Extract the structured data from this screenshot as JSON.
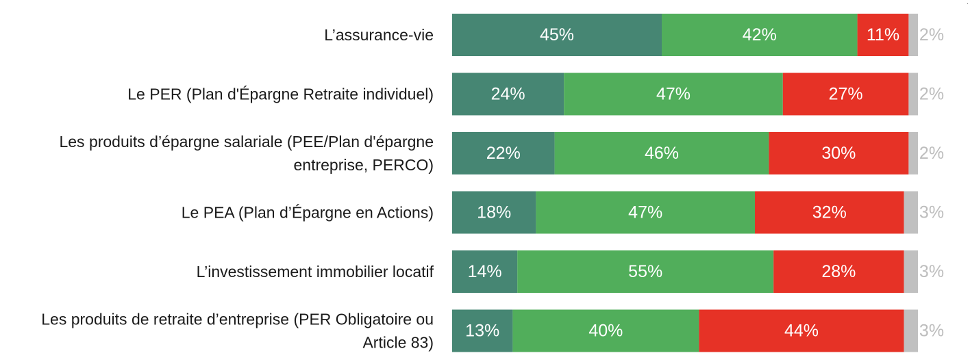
{
  "chart_data": {
    "type": "bar",
    "orientation": "horizontal",
    "stacked": true,
    "title": "",
    "xlabel": "",
    "ylabel": "",
    "legend": "none",
    "grid": false,
    "xlim": [
      0,
      100
    ],
    "categories": [
      [
        "L’assurance-vie"
      ],
      [
        "Le PER (Plan d'Épargne Retraite individuel)"
      ],
      [
        "Les produits d’épargne salariale (PEE/Plan d'épargne",
        "entreprise, PERCO)"
      ],
      [
        "Le PEA (Plan d’Épargne en Actions)"
      ],
      [
        "L’investissement immobilier locatif"
      ],
      [
        "Les produits de retraite d’entreprise (PER Obligatoire ou",
        "Article 83)"
      ]
    ],
    "series": [
      {
        "color": "#468673",
        "label_color": "#ffffff",
        "values": [
          45,
          24,
          22,
          18,
          14,
          13
        ]
      },
      {
        "color": "#51ae5b",
        "label_color": "#ffffff",
        "values": [
          42,
          47,
          46,
          47,
          55,
          40
        ]
      },
      {
        "color": "#e63226",
        "label_color": "#ffffff",
        "values": [
          11,
          27,
          30,
          32,
          28,
          44
        ]
      },
      {
        "color": "#c0c0c0",
        "label_color": "#bdbdbd",
        "values": [
          2,
          2,
          2,
          3,
          3,
          3
        ]
      }
    ],
    "data_labels": [
      [
        "45%",
        "42%",
        "11%",
        "2%"
      ],
      [
        "24%",
        "47%",
        "27%",
        "2%"
      ],
      [
        "22%",
        "46%",
        "30%",
        "2%"
      ],
      [
        "18%",
        "47%",
        "32%",
        "3%"
      ],
      [
        "14%",
        "55%",
        "28%",
        "3%"
      ],
      [
        "13%",
        "40%",
        "44%",
        "3%"
      ]
    ]
  },
  "corner_mark": "·"
}
